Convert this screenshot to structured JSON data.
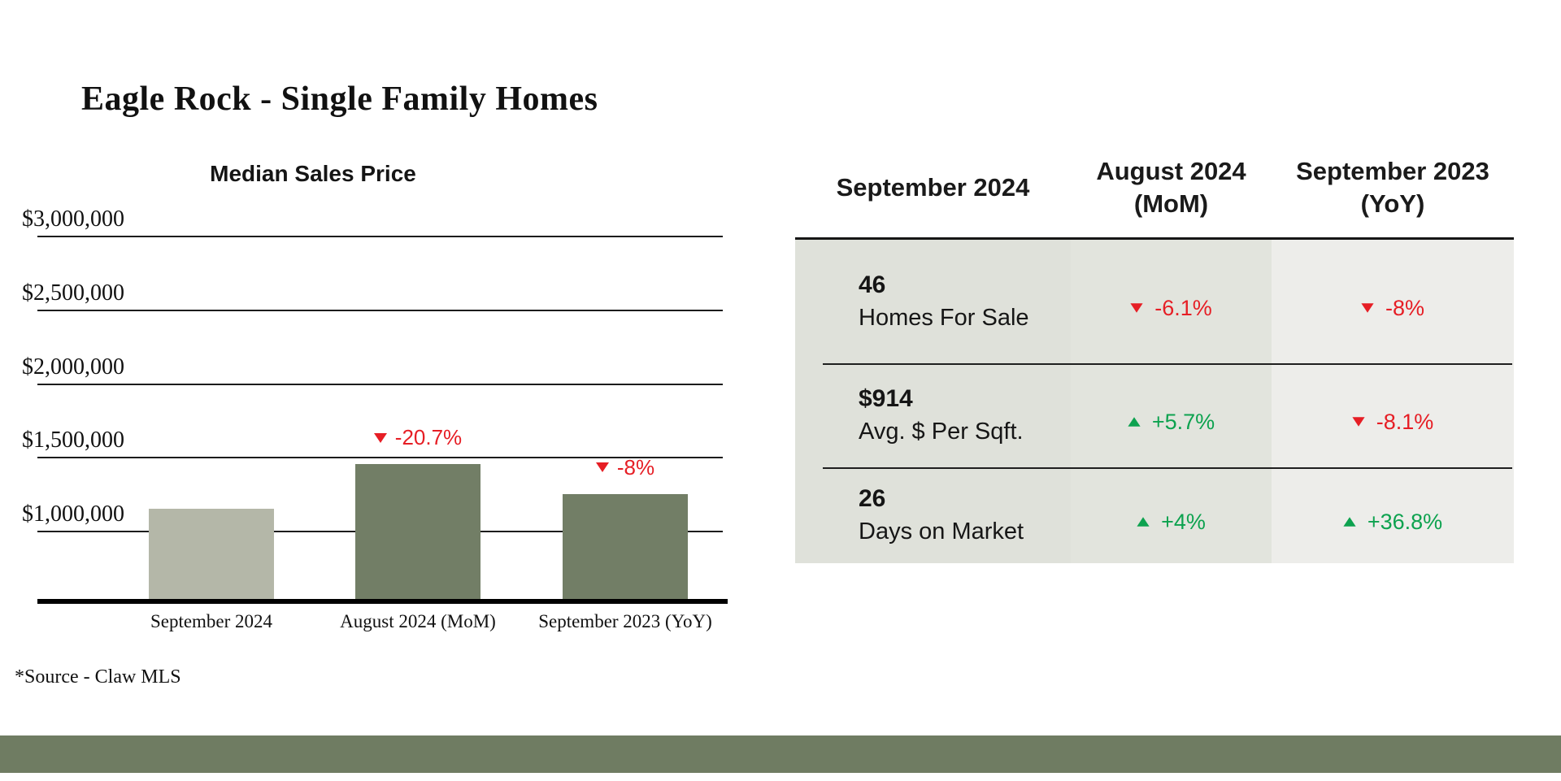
{
  "page": {
    "title": "Eagle Rock - Single Family Homes",
    "source_note": "*Source - Claw MLS"
  },
  "chart_data": {
    "type": "bar",
    "title": "Median Sales Price",
    "categories": [
      "September 2024",
      "August 2024 (MoM)",
      "September 2023 (YoY)"
    ],
    "values": [
      1150000,
      1450000,
      1250000
    ],
    "bar_colors": [
      "#b4b7a8",
      "#727e66",
      "#727e66"
    ],
    "ytick_values": [
      3000000,
      2500000,
      2000000,
      1500000,
      1000000
    ],
    "ytick_labels": [
      "$3,000,000",
      "$2,500,000",
      "$2,000,000",
      "$1,500,000",
      "$1,000,000"
    ],
    "ylim": [
      500000,
      3000000
    ],
    "grid": true,
    "legend": "none",
    "annotations": [
      {
        "category_index": 1,
        "text": "-20.7%",
        "direction": "down"
      },
      {
        "category_index": 2,
        "text": "-8%",
        "direction": "down"
      }
    ]
  },
  "table": {
    "columns": [
      {
        "label": "September 2024",
        "sublabel": ""
      },
      {
        "label": "August 2024",
        "sublabel": "(MoM)"
      },
      {
        "label": "September 2023",
        "sublabel": "(YoY)"
      }
    ],
    "rows": [
      {
        "value": "46",
        "label": "Homes For Sale",
        "mom": {
          "direction": "down",
          "text": "-6.1%"
        },
        "yoy": {
          "direction": "down",
          "text": "-8%"
        }
      },
      {
        "value": "$914",
        "label": "Avg. $ Per Sqft.",
        "mom": {
          "direction": "up",
          "text": "+5.7%"
        },
        "yoy": {
          "direction": "down",
          "text": "-8.1%"
        }
      },
      {
        "value": "26",
        "label": "Days on Market",
        "mom": {
          "direction": "up",
          "text": "+4%"
        },
        "yoy": {
          "direction": "up",
          "text": "+36.8%"
        }
      }
    ]
  },
  "colors": {
    "positive": "#0da24f",
    "negative": "#e61e25",
    "bar_primary": "#b4b7a8",
    "bar_secondary": "#727e66",
    "footer_bar": "#6f7c62",
    "table_col1_bg": "#dfe1da",
    "table_col2_bg": "#e2e4dd",
    "table_col3_bg": "#ededea"
  }
}
